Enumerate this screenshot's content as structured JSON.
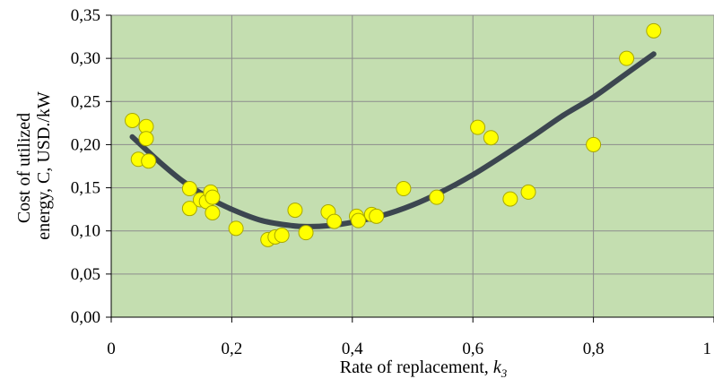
{
  "chart_data": {
    "type": "scatter",
    "xlabel_prefix": "Rate of replacement, ",
    "xlabel_var": "k",
    "xlabel_sub": "3",
    "ylabel_line1": "Cost of utilized",
    "ylabel_line2": "energy, C, USD./kW",
    "xlim": [
      0,
      1
    ],
    "ylim": [
      0,
      0.35
    ],
    "x_ticks": [
      0,
      0.2,
      0.4,
      0.6,
      0.8,
      1
    ],
    "x_tick_labels": [
      "0",
      "0,2",
      "0,4",
      "0,6",
      "0,8",
      "1"
    ],
    "y_ticks": [
      0,
      0.05,
      0.1,
      0.15,
      0.2,
      0.25,
      0.3,
      0.35
    ],
    "y_tick_labels": [
      "0,00",
      "0,05",
      "0,10",
      "0,15",
      "0,20",
      "0,25",
      "0,30",
      "0,35"
    ],
    "grid": true,
    "legend": "none",
    "colors": {
      "plot_background": "#c4deb0",
      "point_fill": "#ffff00",
      "point_stroke": "#a8a800",
      "trend_line": "#3c4650",
      "grid": "#8c8c8c"
    },
    "series": [
      {
        "type": "scatter",
        "points": [
          [
            0.035,
            0.228
          ],
          [
            0.045,
            0.183
          ],
          [
            0.058,
            0.221
          ],
          [
            0.058,
            0.207
          ],
          [
            0.062,
            0.181
          ],
          [
            0.13,
            0.149
          ],
          [
            0.13,
            0.126
          ],
          [
            0.148,
            0.136
          ],
          [
            0.158,
            0.134
          ],
          [
            0.165,
            0.145
          ],
          [
            0.168,
            0.139
          ],
          [
            0.168,
            0.121
          ],
          [
            0.207,
            0.103
          ],
          [
            0.26,
            0.09
          ],
          [
            0.272,
            0.093
          ],
          [
            0.283,
            0.095
          ],
          [
            0.305,
            0.124
          ],
          [
            0.323,
            0.098
          ],
          [
            0.36,
            0.122
          ],
          [
            0.37,
            0.111
          ],
          [
            0.407,
            0.117
          ],
          [
            0.41,
            0.112
          ],
          [
            0.432,
            0.119
          ],
          [
            0.44,
            0.117
          ],
          [
            0.485,
            0.149
          ],
          [
            0.54,
            0.139
          ],
          [
            0.608,
            0.22
          ],
          [
            0.63,
            0.208
          ],
          [
            0.662,
            0.137
          ],
          [
            0.692,
            0.145
          ],
          [
            0.8,
            0.2
          ],
          [
            0.855,
            0.3
          ],
          [
            0.9,
            0.332
          ]
        ]
      },
      {
        "type": "trend",
        "points": [
          [
            0.035,
            0.209
          ],
          [
            0.08,
            0.18
          ],
          [
            0.12,
            0.157
          ],
          [
            0.16,
            0.139
          ],
          [
            0.2,
            0.125
          ],
          [
            0.25,
            0.112
          ],
          [
            0.3,
            0.106
          ],
          [
            0.33,
            0.105
          ],
          [
            0.36,
            0.106
          ],
          [
            0.4,
            0.11
          ],
          [
            0.45,
            0.118
          ],
          [
            0.5,
            0.13
          ],
          [
            0.55,
            0.146
          ],
          [
            0.6,
            0.165
          ],
          [
            0.65,
            0.187
          ],
          [
            0.7,
            0.21
          ],
          [
            0.75,
            0.234
          ],
          [
            0.8,
            0.255
          ],
          [
            0.85,
            0.28
          ],
          [
            0.9,
            0.305
          ]
        ]
      }
    ]
  }
}
